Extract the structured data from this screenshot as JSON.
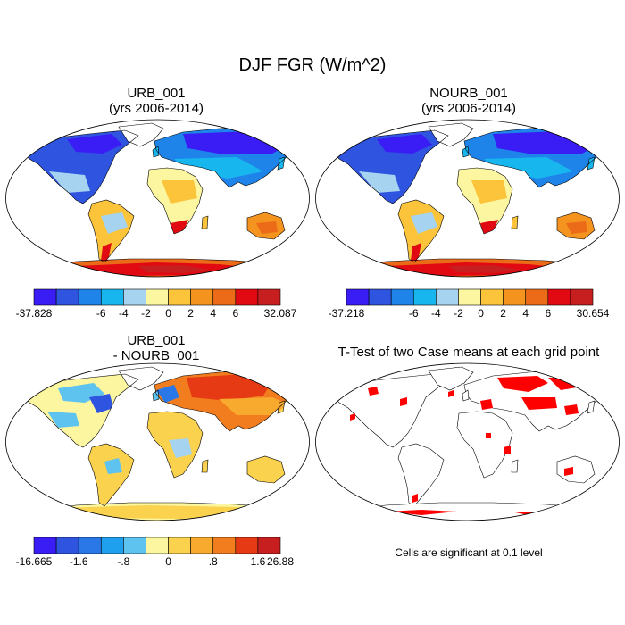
{
  "figure": {
    "title": "DJF FGR (W/m^2)",
    "footnote": "Cells are significant at 0.1 level"
  },
  "chart_data": [
    {
      "type": "heatmap",
      "id": "urb",
      "title": "URB_001",
      "subtitle": "(yrs 2006-2014)",
      "projection": "robinson",
      "variable": "FGR",
      "units": "W/m^2",
      "colorbar": {
        "min_label": "-37.828",
        "max_label": "32.087",
        "ticks": [
          "-6",
          "-4",
          "-2",
          "0",
          "2",
          "4",
          "6"
        ],
        "colors": [
          "#3a1cf5",
          "#2f55e0",
          "#1e84ea",
          "#18b6ee",
          "#a6d3f0",
          "#fdf6a0",
          "#fbc43a",
          "#f4941f",
          "#ec6b18",
          "#e20a12",
          "#c71e20"
        ]
      }
    },
    {
      "type": "heatmap",
      "id": "nourb",
      "title": "NOURB_001",
      "subtitle": "(yrs 2006-2014)",
      "projection": "robinson",
      "variable": "FGR",
      "units": "W/m^2",
      "colorbar": {
        "min_label": "-37.218",
        "max_label": "30.654",
        "ticks": [
          "-6",
          "-4",
          "-2",
          "0",
          "2",
          "4",
          "6"
        ],
        "colors": [
          "#3a1cf5",
          "#2f55e0",
          "#1e84ea",
          "#18b6ee",
          "#a6d3f0",
          "#fdf6a0",
          "#fbc43a",
          "#f4941f",
          "#ec6b18",
          "#e20a12",
          "#c71e20"
        ]
      }
    },
    {
      "type": "heatmap",
      "id": "diff",
      "title": "URB_001",
      "subtitle": "- NOURB_001",
      "projection": "robinson",
      "variable": "FGR difference",
      "units": "W/m^2",
      "colorbar": {
        "min_label": "-16.665",
        "max_label": "26.88",
        "ticks": [
          "-1.6",
          "-.8",
          "0",
          ".8",
          "1.6"
        ],
        "colors": [
          "#3a1cf5",
          "#2f55e0",
          "#2a78e8",
          "#1fa0ee",
          "#5ec3ee",
          "#fdf6a0",
          "#fbd24e",
          "#f8aa2e",
          "#f27d1e",
          "#e63a14",
          "#c71e20"
        ]
      }
    },
    {
      "type": "heatmap",
      "id": "ttest",
      "title": "T-Test of two Case means at each grid point",
      "projection": "robinson",
      "significance_level": 0.1,
      "marker_color": "#ff0000"
    }
  ]
}
